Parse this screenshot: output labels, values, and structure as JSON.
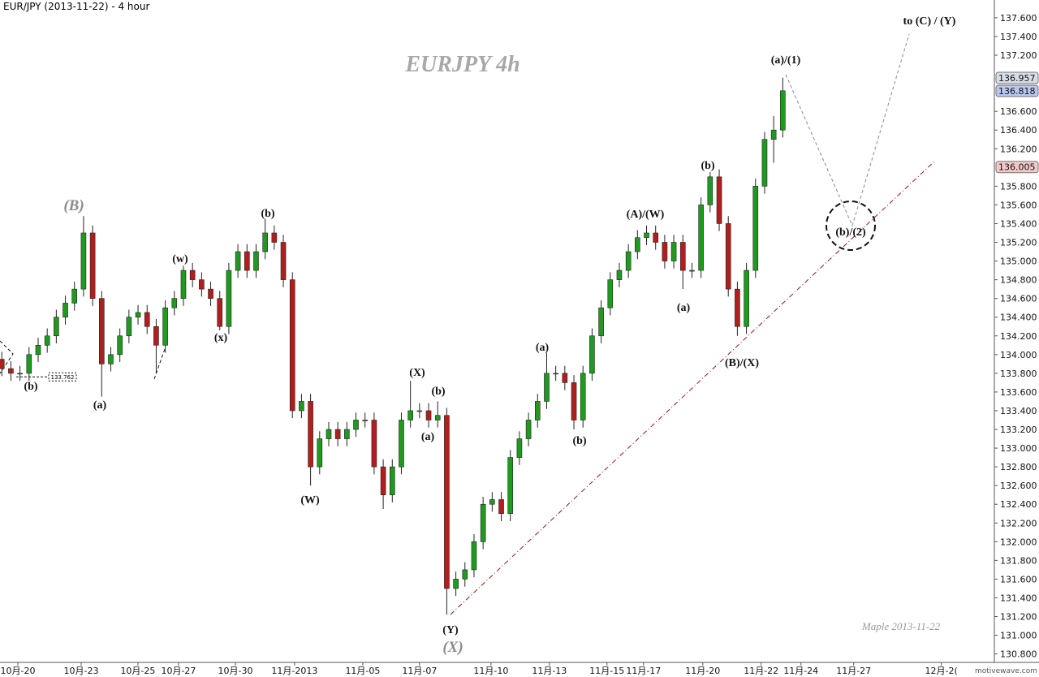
{
  "chart_data": {
    "type": "candlestick",
    "title": "EUR/JPY (2013-11-22) - 4 hour",
    "watermark": "EURJPY  4h",
    "signature": "Maple  2013-11-22",
    "brand": "motivewave.com",
    "up_color": "#1f9a1f",
    "down_color": "#b01e1e",
    "open": [
      133.95,
      133.85,
      133.8,
      133.8,
      134.0,
      134.1,
      134.2,
      134.4,
      134.55,
      134.7,
      135.3,
      134.6,
      133.9,
      134.0,
      134.2,
      134.4,
      134.45,
      134.3,
      134.1,
      134.5,
      134.6,
      134.9,
      134.8,
      134.7,
      134.6,
      134.3,
      134.9,
      135.1,
      134.9,
      135.1,
      135.3,
      135.2,
      134.8,
      133.4,
      133.5,
      132.8,
      133.1,
      133.2,
      133.1,
      133.2,
      133.3,
      133.3,
      132.8,
      132.5,
      132.8,
      133.3,
      133.4,
      133.4,
      133.3,
      133.35,
      131.5,
      131.6,
      131.7,
      132.0,
      132.4,
      132.45,
      132.3,
      132.9,
      133.1,
      133.3,
      133.5,
      133.8,
      133.8,
      133.7,
      133.3,
      133.8,
      134.2,
      134.5,
      134.8,
      134.9,
      135.1,
      135.25,
      135.3,
      135.2,
      135.0,
      135.2,
      134.9,
      134.9,
      135.6,
      135.9,
      135.4,
      134.7,
      134.3,
      134.9,
      135.8,
      136.3,
      136.4
    ],
    "high": [
      134.03,
      133.93,
      133.88,
      134.08,
      134.18,
      134.28,
      134.48,
      134.63,
      134.78,
      135.48,
      135.38,
      134.68,
      134.08,
      134.28,
      134.48,
      134.53,
      134.53,
      134.38,
      134.58,
      134.68,
      134.95,
      134.98,
      134.88,
      134.78,
      134.68,
      134.98,
      135.18,
      135.18,
      135.18,
      135.45,
      135.38,
      135.28,
      134.88,
      133.58,
      133.58,
      133.18,
      133.28,
      133.28,
      133.28,
      133.38,
      133.38,
      133.38,
      132.88,
      132.88,
      133.38,
      133.72,
      133.48,
      133.48,
      133.5,
      133.43,
      131.68,
      131.78,
      132.08,
      132.48,
      132.53,
      132.53,
      132.98,
      133.18,
      133.38,
      133.58,
      134.02,
      133.88,
      133.88,
      133.78,
      133.88,
      134.28,
      134.58,
      134.88,
      134.98,
      135.18,
      135.33,
      135.38,
      135.38,
      135.28,
      135.28,
      135.28,
      134.98,
      135.68,
      135.95,
      135.98,
      135.48,
      134.78,
      134.98,
      135.88,
      136.38,
      136.55,
      136.96
    ],
    "low": [
      133.77,
      133.72,
      133.72,
      133.72,
      133.92,
      134.02,
      134.12,
      134.32,
      134.47,
      134.62,
      134.52,
      133.55,
      133.82,
      133.92,
      134.12,
      134.32,
      134.22,
      133.8,
      134.02,
      134.42,
      134.52,
      134.72,
      134.62,
      134.52,
      134.26,
      134.22,
      134.82,
      134.82,
      134.82,
      135.02,
      135.12,
      134.72,
      133.32,
      133.32,
      132.6,
      132.72,
      133.02,
      133.02,
      133.02,
      133.12,
      133.22,
      132.72,
      132.35,
      132.42,
      132.72,
      133.22,
      133.32,
      133.22,
      133.22,
      131.22,
      131.42,
      131.52,
      131.62,
      131.92,
      132.32,
      132.22,
      132.22,
      132.82,
      133.02,
      133.22,
      133.42,
      133.72,
      133.62,
      133.2,
      133.22,
      133.72,
      134.12,
      134.42,
      134.72,
      134.82,
      135.02,
      135.17,
      135.12,
      134.92,
      134.92,
      134.7,
      134.82,
      134.82,
      135.52,
      135.32,
      134.62,
      134.2,
      134.22,
      134.82,
      135.72,
      136.05,
      136.32
    ],
    "close": [
      133.85,
      133.8,
      133.8,
      134.0,
      134.1,
      134.2,
      134.4,
      134.55,
      134.7,
      135.3,
      134.6,
      133.9,
      134.0,
      134.2,
      134.4,
      134.45,
      134.3,
      134.1,
      134.5,
      134.6,
      134.9,
      134.8,
      134.7,
      134.6,
      134.3,
      134.9,
      135.1,
      134.9,
      135.1,
      135.3,
      135.2,
      134.8,
      133.4,
      133.5,
      132.8,
      133.1,
      133.2,
      133.1,
      133.2,
      133.3,
      133.3,
      132.8,
      132.5,
      132.8,
      133.3,
      133.4,
      133.4,
      133.3,
      133.35,
      131.5,
      131.6,
      131.7,
      132.0,
      132.4,
      132.45,
      132.3,
      132.9,
      133.1,
      133.3,
      133.5,
      133.8,
      133.8,
      133.7,
      133.3,
      133.8,
      134.2,
      134.5,
      134.8,
      134.9,
      135.1,
      135.25,
      135.3,
      135.2,
      135.0,
      135.2,
      134.9,
      134.9,
      135.6,
      135.9,
      135.4,
      134.7,
      134.3,
      134.9,
      135.8,
      136.3,
      136.4,
      136.82
    ],
    "xlim": [
      -0.2,
      109.3
    ],
    "xticks": [
      {
        "value": 1.77,
        "label": "10月-20"
      },
      {
        "value": 8.74,
        "label": "10月-23"
      },
      {
        "value": 14.99,
        "label": "10月-25"
      },
      {
        "value": 19.46,
        "label": "10月-27"
      },
      {
        "value": 25.72,
        "label": "10月-30"
      },
      {
        "value": 32.24,
        "label": "11月-2013"
      },
      {
        "value": 39.75,
        "label": "11月-05"
      },
      {
        "value": 46.0,
        "label": "11月-07"
      },
      {
        "value": 53.87,
        "label": "11月-10"
      },
      {
        "value": 60.3,
        "label": "11月-13"
      },
      {
        "value": 66.64,
        "label": "11月-15"
      },
      {
        "value": 70.67,
        "label": "11月-17"
      },
      {
        "value": 77.19,
        "label": "11月-20"
      },
      {
        "value": 83.62,
        "label": "11月-22"
      },
      {
        "value": 88.0,
        "label": "11月-24"
      },
      {
        "value": 93.81,
        "label": "11月-27"
      },
      {
        "value": 103.46,
        "label": "12月-2("
      }
    ],
    "ylim": [
      130.71,
      137.79
    ],
    "yticks": [
      {
        "value": 130.8,
        "label": "130.800"
      },
      {
        "value": 131.0,
        "label": "131.000"
      },
      {
        "value": 131.2,
        "label": "131.200"
      },
      {
        "value": 131.4,
        "label": "131.400"
      },
      {
        "value": 131.6,
        "label": "131.600"
      },
      {
        "value": 131.8,
        "label": "131.800"
      },
      {
        "value": 132.0,
        "label": "132.000"
      },
      {
        "value": 132.2,
        "label": "132.200"
      },
      {
        "value": 132.4,
        "label": "132.400"
      },
      {
        "value": 132.6,
        "label": "132.600"
      },
      {
        "value": 132.8,
        "label": "132.800"
      },
      {
        "value": 133.0,
        "label": "133.000"
      },
      {
        "value": 133.2,
        "label": "133.200"
      },
      {
        "value": 133.4,
        "label": "133.400"
      },
      {
        "value": 133.6,
        "label": "133.600"
      },
      {
        "value": 133.8,
        "label": "133.800"
      },
      {
        "value": 134.0,
        "label": "134.000"
      },
      {
        "value": 134.2,
        "label": "134.200"
      },
      {
        "value": 134.4,
        "label": "134.400"
      },
      {
        "value": 134.6,
        "label": "134.600"
      },
      {
        "value": 134.8,
        "label": "134.800"
      },
      {
        "value": 135.0,
        "label": "135.000"
      },
      {
        "value": 135.2,
        "label": "135.200"
      },
      {
        "value": 135.4,
        "label": "135.400"
      },
      {
        "value": 135.6,
        "label": "135.600"
      },
      {
        "value": 135.8,
        "label": "135.800"
      },
      {
        "value": 136.2,
        "label": "136.200"
      },
      {
        "value": 136.4,
        "label": "136.400"
      },
      {
        "value": 136.6,
        "label": "136.600"
      },
      {
        "value": 137.2,
        "label": "137.200"
      },
      {
        "value": 137.4,
        "label": "137.400"
      },
      {
        "value": 137.6,
        "label": "137.600"
      }
    ],
    "price_tags": [
      {
        "value": 136.957,
        "label": "136.957",
        "color": "#d8dde8"
      },
      {
        "value": 136.818,
        "label": "136.818",
        "color": "#b9c6f0"
      },
      {
        "value": 136.005,
        "label": "136.005",
        "color": "#f4c8c8"
      }
    ],
    "level_note": {
      "value": 133.762,
      "label": "133.762"
    },
    "annotations": [
      "(B)",
      "(b)",
      "(a)",
      "(w)",
      "(x)",
      "(b)",
      "(W)",
      "(X)",
      "(b)",
      "(a)",
      "(Y)",
      "(X)",
      "(a)",
      "(b)",
      "(A)/(W)",
      "(a)",
      "(b)",
      "(B)/(X)",
      "(a)/(1)",
      "(b)/(2)",
      "to (C) / (Y)"
    ]
  }
}
